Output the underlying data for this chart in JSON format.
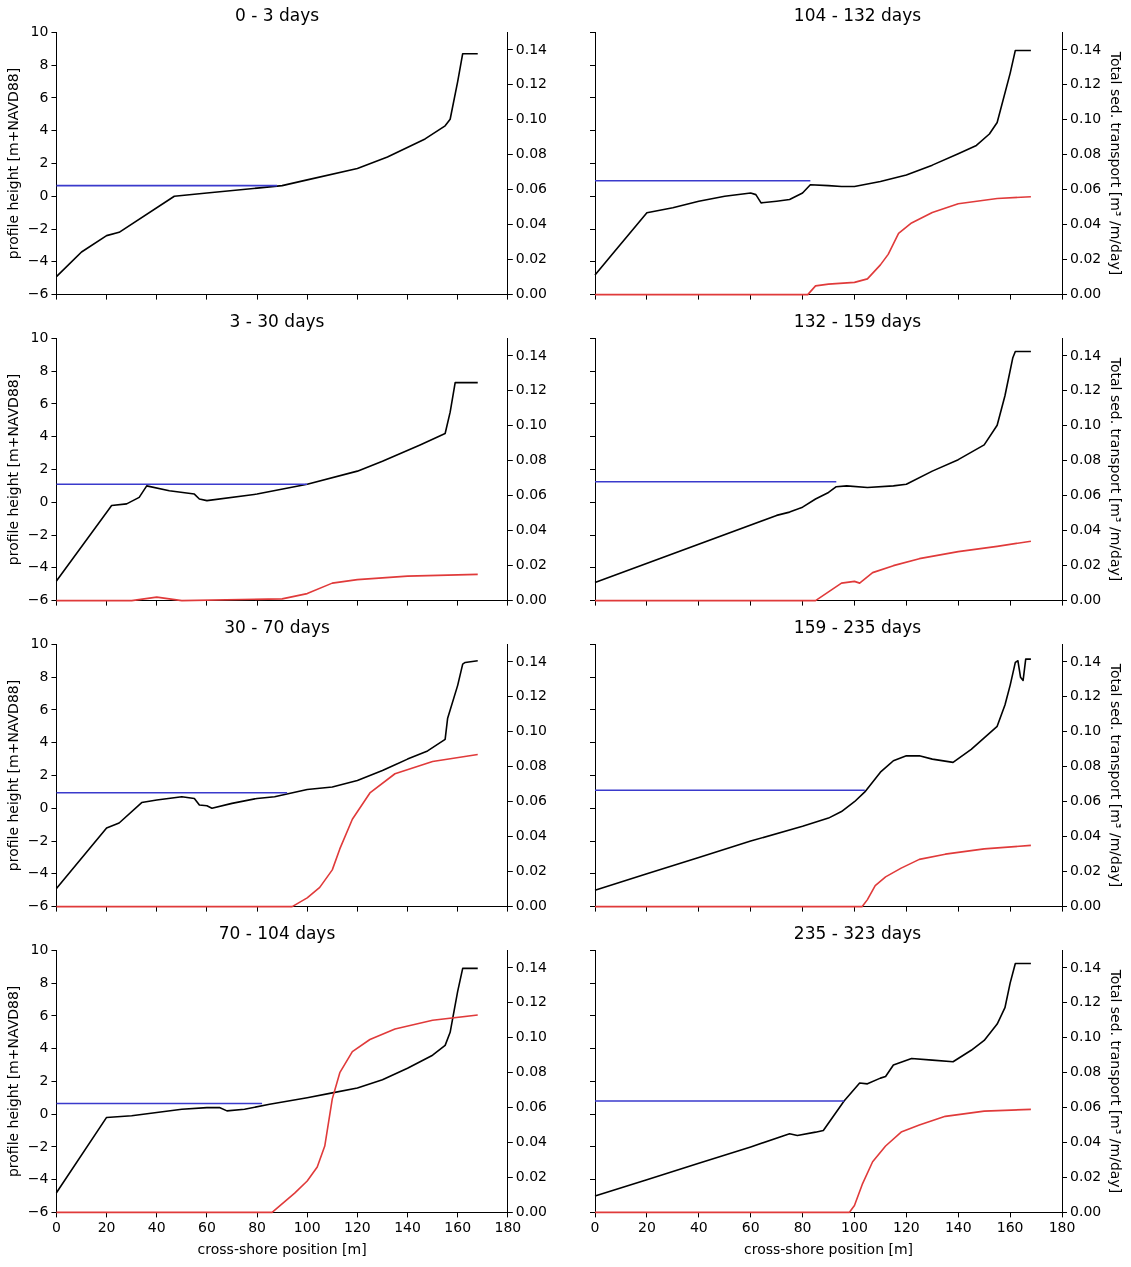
{
  "chart_data": [
    {
      "type": "line",
      "title": "0 - 3 days",
      "ylabel": "profile height [m+NAVD88]",
      "xlim": [
        0,
        180
      ],
      "xticks": [
        0,
        20,
        40,
        60,
        80,
        100,
        120,
        140,
        160,
        180
      ],
      "ylim": [
        -6,
        10
      ],
      "yticks": [
        {
          "value": -6,
          "label": "−6"
        },
        {
          "value": -4,
          "label": "−4"
        },
        {
          "value": -2,
          "label": "−2"
        },
        0,
        2,
        4,
        6,
        8,
        10
      ],
      "y2lim": [
        0,
        0.15
      ],
      "y2ticks": [
        {
          "value": 0,
          "label": "0.00"
        },
        {
          "value": 0.02,
          "label": "0.02"
        },
        {
          "value": 0.04,
          "label": "0.04"
        },
        {
          "value": 0.06,
          "label": "0.06"
        },
        {
          "value": 0.08,
          "label": "0.08"
        },
        {
          "value": 0.1,
          "label": "0.10"
        },
        {
          "value": 0.12,
          "label": "0.12"
        },
        {
          "value": 0.14,
          "label": "0.14"
        }
      ],
      "tick_labels": "y",
      "series": [
        {
          "color": "#3a3acc",
          "x": [
            0,
            88
          ],
          "values": [
            0.65,
            0.65
          ]
        },
        {
          "color": "#000000",
          "x": [
            0,
            10,
            20,
            25,
            47,
            60,
            80,
            90,
            100,
            120,
            132,
            147,
            155,
            157,
            160,
            162,
            168
          ],
          "values": [
            -4.9,
            -3.4,
            -2.4,
            -2.2,
            0,
            0.2,
            0.5,
            0.65,
            1.0,
            1.7,
            2.4,
            3.5,
            4.3,
            4.7,
            7,
            8.7,
            8.7
          ]
        }
      ]
    },
    {
      "type": "line",
      "title": "104 - 132 days",
      "y2label": "Total sed. transport [m³ /m/day]",
      "xlim": [
        0,
        180
      ],
      "xticks": [
        0,
        20,
        40,
        60,
        80,
        100,
        120,
        140,
        160,
        180
      ],
      "ylim": [
        -6,
        10
      ],
      "yticks": [
        -6,
        -4,
        -2,
        0,
        2,
        4,
        6,
        8,
        10
      ],
      "y2lim": [
        0,
        0.15
      ],
      "y2ticks": [
        {
          "value": 0,
          "label": "0.00"
        },
        {
          "value": 0.02,
          "label": "0.02"
        },
        {
          "value": 0.04,
          "label": "0.04"
        },
        {
          "value": 0.06,
          "label": "0.06"
        },
        {
          "value": 0.08,
          "label": "0.08"
        },
        {
          "value": 0.1,
          "label": "0.10"
        },
        {
          "value": 0.12,
          "label": "0.12"
        },
        {
          "value": 0.14,
          "label": "0.14"
        }
      ],
      "tick_labels": false,
      "series": [
        {
          "color": "#3a3acc",
          "x": [
            0,
            83
          ],
          "values": [
            0.95,
            0.95
          ]
        },
        {
          "color": "#e03a3a",
          "axis": "y2",
          "x": [
            0,
            82,
            85,
            90,
            100,
            105,
            110,
            113,
            117,
            122,
            130,
            140,
            155,
            168
          ],
          "values": [
            0,
            0,
            0.005,
            0.006,
            0.007,
            0.009,
            0.017,
            0.023,
            0.035,
            0.041,
            0.047,
            0.052,
            0.055,
            0.056
          ]
        },
        {
          "color": "#000000",
          "x": [
            0,
            20,
            30,
            40,
            50,
            60,
            62,
            64,
            70,
            75,
            80,
            83,
            90,
            95,
            100,
            110,
            120,
            130,
            140,
            147,
            152,
            155,
            160,
            162,
            168
          ],
          "values": [
            -4.8,
            -1.0,
            -0.7,
            -0.3,
            0,
            0.2,
            0.1,
            -0.4,
            -0.3,
            -0.2,
            0.2,
            0.7,
            0.65,
            0.6,
            0.6,
            0.9,
            1.3,
            1.9,
            2.6,
            3.1,
            3.8,
            4.5,
            7.5,
            8.9,
            8.9
          ]
        }
      ]
    },
    {
      "type": "line",
      "title": "3 - 30 days",
      "ylabel": "profile height [m+NAVD88]",
      "xlim": [
        0,
        180
      ],
      "xticks": [
        0,
        20,
        40,
        60,
        80,
        100,
        120,
        140,
        160,
        180
      ],
      "ylim": [
        -6,
        10
      ],
      "yticks": [
        {
          "value": -6,
          "label": "−6"
        },
        {
          "value": -4,
          "label": "−4"
        },
        {
          "value": -2,
          "label": "−2"
        },
        0,
        2,
        4,
        6,
        8,
        10
      ],
      "y2lim": [
        0,
        0.15
      ],
      "y2ticks": [
        {
          "value": 0,
          "label": "0.00"
        },
        {
          "value": 0.02,
          "label": "0.02"
        },
        {
          "value": 0.04,
          "label": "0.04"
        },
        {
          "value": 0.06,
          "label": "0.06"
        },
        {
          "value": 0.08,
          "label": "0.08"
        },
        {
          "value": 0.1,
          "label": "0.10"
        },
        {
          "value": 0.12,
          "label": "0.12"
        },
        {
          "value": 0.14,
          "label": "0.14"
        }
      ],
      "tick_labels": "y",
      "series": [
        {
          "color": "#3a3acc",
          "x": [
            0,
            100
          ],
          "values": [
            1.1,
            1.1
          ]
        },
        {
          "color": "#e03a3a",
          "axis": "y2",
          "x": [
            0,
            30,
            40,
            50,
            90,
            100,
            110,
            120,
            140,
            168
          ],
          "values": [
            0,
            0,
            0.002,
            0,
            0.001,
            0.004,
            0.01,
            0.012,
            0.014,
            0.015
          ]
        },
        {
          "color": "#000000",
          "x": [
            0,
            22,
            28,
            33,
            36,
            45,
            55,
            57,
            60,
            80,
            100,
            120,
            130,
            145,
            155,
            157,
            159,
            168
          ],
          "values": [
            -4.8,
            -0.2,
            -0.1,
            0.3,
            1.0,
            0.7,
            0.5,
            0.2,
            0.1,
            0.5,
            1.1,
            1.9,
            2.5,
            3.5,
            4.2,
            5.5,
            7.3,
            7.3
          ]
        }
      ]
    },
    {
      "type": "line",
      "title": "132 - 159 days",
      "y2label": "Total sed. transport [m³ /m/day]",
      "xlim": [
        0,
        180
      ],
      "xticks": [
        0,
        20,
        40,
        60,
        80,
        100,
        120,
        140,
        160,
        180
      ],
      "ylim": [
        -6,
        10
      ],
      "yticks": [
        -6,
        -4,
        -2,
        0,
        2,
        4,
        6,
        8,
        10
      ],
      "y2lim": [
        0,
        0.15
      ],
      "y2ticks": [
        {
          "value": 0,
          "label": "0.00"
        },
        {
          "value": 0.02,
          "label": "0.02"
        },
        {
          "value": 0.04,
          "label": "0.04"
        },
        {
          "value": 0.06,
          "label": "0.06"
        },
        {
          "value": 0.08,
          "label": "0.08"
        },
        {
          "value": 0.1,
          "label": "0.10"
        },
        {
          "value": 0.12,
          "label": "0.12"
        },
        {
          "value": 0.14,
          "label": "0.14"
        }
      ],
      "tick_labels": false,
      "series": [
        {
          "color": "#3a3acc",
          "x": [
            0,
            93
          ],
          "values": [
            1.25,
            1.25
          ]
        },
        {
          "color": "#e03a3a",
          "axis": "y2",
          "x": [
            0,
            85,
            90,
            95,
            100,
            102,
            107,
            115,
            125,
            140,
            155,
            168
          ],
          "values": [
            0,
            0,
            0.005,
            0.01,
            0.011,
            0.01,
            0.016,
            0.02,
            0.024,
            0.028,
            0.031,
            0.034
          ]
        },
        {
          "color": "#000000",
          "x": [
            0,
            70,
            75,
            80,
            85,
            90,
            93,
            97,
            105,
            115,
            120,
            130,
            140,
            150,
            155,
            158,
            161,
            162,
            168
          ],
          "values": [
            -4.9,
            -0.8,
            -0.6,
            -0.3,
            0.2,
            0.6,
            0.95,
            1.0,
            0.9,
            1.0,
            1.1,
            1.9,
            2.6,
            3.5,
            4.7,
            6.5,
            8.8,
            9.2,
            9.2
          ]
        }
      ]
    },
    {
      "type": "line",
      "title": "30 - 70 days",
      "ylabel": "profile height [m+NAVD88]",
      "xlim": [
        0,
        180
      ],
      "xticks": [
        0,
        20,
        40,
        60,
        80,
        100,
        120,
        140,
        160,
        180
      ],
      "ylim": [
        -6,
        10
      ],
      "yticks": [
        {
          "value": -6,
          "label": "−6"
        },
        {
          "value": -4,
          "label": "−4"
        },
        {
          "value": -2,
          "label": "−2"
        },
        0,
        2,
        4,
        6,
        8,
        10
      ],
      "y2lim": [
        0,
        0.15
      ],
      "y2ticks": [
        {
          "value": 0,
          "label": "0.00"
        },
        {
          "value": 0.02,
          "label": "0.02"
        },
        {
          "value": 0.04,
          "label": "0.04"
        },
        {
          "value": 0.06,
          "label": "0.06"
        },
        {
          "value": 0.08,
          "label": "0.08"
        },
        {
          "value": 0.1,
          "label": "0.10"
        },
        {
          "value": 0.12,
          "label": "0.12"
        },
        {
          "value": 0.14,
          "label": "0.14"
        }
      ],
      "tick_labels": "y",
      "series": [
        {
          "color": "#3a3acc",
          "x": [
            0,
            92
          ],
          "values": [
            0.95,
            0.95
          ]
        },
        {
          "color": "#e03a3a",
          "axis": "y2",
          "x": [
            0,
            94,
            100,
            105,
            110,
            113,
            118,
            125,
            135,
            150,
            168
          ],
          "values": [
            0,
            0,
            0.005,
            0.011,
            0.021,
            0.033,
            0.05,
            0.065,
            0.076,
            0.083,
            0.087
          ]
        },
        {
          "color": "#000000",
          "x": [
            0,
            20,
            25,
            34,
            40,
            50,
            55,
            57,
            60,
            62,
            70,
            80,
            87,
            100,
            110,
            120,
            130,
            140,
            148,
            155,
            156,
            160,
            162,
            163,
            168
          ],
          "values": [
            -4.9,
            -1.2,
            -0.9,
            0.35,
            0.5,
            0.7,
            0.6,
            0.2,
            0.15,
            0,
            0.3,
            0.6,
            0.7,
            1.15,
            1.3,
            1.7,
            2.3,
            3.0,
            3.5,
            4.2,
            5.5,
            7.5,
            8.8,
            8.9,
            9.0
          ]
        }
      ]
    },
    {
      "type": "line",
      "title": "159 - 235 days",
      "y2label": "Total sed. transport [m³ /m/day]",
      "xlim": [
        0,
        180
      ],
      "xticks": [
        0,
        20,
        40,
        60,
        80,
        100,
        120,
        140,
        160,
        180
      ],
      "ylim": [
        -6,
        10
      ],
      "yticks": [
        -6,
        -4,
        -2,
        0,
        2,
        4,
        6,
        8,
        10
      ],
      "y2lim": [
        0,
        0.15
      ],
      "y2ticks": [
        {
          "value": 0,
          "label": "0.00"
        },
        {
          "value": 0.02,
          "label": "0.02"
        },
        {
          "value": 0.04,
          "label": "0.04"
        },
        {
          "value": 0.06,
          "label": "0.06"
        },
        {
          "value": 0.08,
          "label": "0.08"
        },
        {
          "value": 0.1,
          "label": "0.10"
        },
        {
          "value": 0.12,
          "label": "0.12"
        },
        {
          "value": 0.14,
          "label": "0.14"
        }
      ],
      "tick_labels": false,
      "series": [
        {
          "color": "#3a3acc",
          "x": [
            0,
            104
          ],
          "values": [
            1.1,
            1.1
          ]
        },
        {
          "color": "#e03a3a",
          "axis": "y2",
          "x": [
            0,
            103,
            105,
            108,
            112,
            118,
            125,
            135,
            150,
            168
          ],
          "values": [
            0,
            0,
            0.004,
            0.012,
            0.017,
            0.022,
            0.027,
            0.03,
            0.033,
            0.035
          ]
        },
        {
          "color": "#000000",
          "x": [
            0,
            20,
            40,
            60,
            80,
            90,
            95,
            100,
            104,
            110,
            115,
            120,
            125,
            130,
            138,
            145,
            150,
            155,
            158,
            160,
            162,
            163,
            164,
            165,
            166,
            168
          ],
          "values": [
            -5.0,
            -4.0,
            -3.0,
            -2.0,
            -1.1,
            -0.6,
            -0.2,
            0.4,
            1.0,
            2.2,
            2.9,
            3.2,
            3.2,
            3.0,
            2.8,
            3.6,
            4.3,
            5.0,
            6.3,
            7.5,
            8.9,
            9.0,
            8.0,
            7.8,
            9.1,
            9.1
          ]
        }
      ]
    },
    {
      "type": "line",
      "title": "70 - 104 days",
      "xlabel": "cross-shore position [m]",
      "ylabel": "profile height [m+NAVD88]",
      "xlim": [
        0,
        180
      ],
      "xticks": [
        0,
        20,
        40,
        60,
        80,
        100,
        120,
        140,
        160,
        180
      ],
      "ylim": [
        -6,
        10
      ],
      "yticks": [
        {
          "value": -6,
          "label": "−6"
        },
        {
          "value": -4,
          "label": "−4"
        },
        {
          "value": -2,
          "label": "−2"
        },
        0,
        2,
        4,
        6,
        8,
        10
      ],
      "y2lim": [
        0,
        0.15
      ],
      "y2ticks": [
        {
          "value": 0,
          "label": "0.00"
        },
        {
          "value": 0.02,
          "label": "0.02"
        },
        {
          "value": 0.04,
          "label": "0.04"
        },
        {
          "value": 0.06,
          "label": "0.06"
        },
        {
          "value": 0.08,
          "label": "0.08"
        },
        {
          "value": 0.1,
          "label": "0.10"
        },
        {
          "value": 0.12,
          "label": "0.12"
        },
        {
          "value": 0.14,
          "label": "0.14"
        }
      ],
      "series": [
        {
          "color": "#3a3acc",
          "x": [
            0,
            82
          ],
          "values": [
            0.65,
            0.65
          ]
        },
        {
          "color": "#e03a3a",
          "axis": "y2",
          "x": [
            0,
            86,
            95,
            100,
            104,
            107,
            110,
            113,
            118,
            125,
            135,
            150,
            168
          ],
          "values": [
            0,
            0,
            0.011,
            0.018,
            0.026,
            0.038,
            0.065,
            0.08,
            0.092,
            0.099,
            0.105,
            0.11,
            0.113
          ]
        },
        {
          "color": "#000000",
          "x": [
            0,
            20,
            30,
            40,
            50,
            60,
            65,
            68,
            75,
            85,
            100,
            110,
            120,
            130,
            140,
            150,
            155,
            157,
            160,
            162,
            168
          ],
          "values": [
            -4.8,
            -0.2,
            -0.1,
            0.1,
            0.3,
            0.4,
            0.4,
            0.2,
            0.3,
            0.6,
            1.0,
            1.3,
            1.6,
            2.1,
            2.8,
            3.6,
            4.2,
            5.0,
            7.5,
            8.9,
            8.9
          ]
        }
      ]
    },
    {
      "type": "line",
      "title": "235 - 323 days",
      "xlabel": "cross-shore position [m]",
      "y2label": "Total sed. transport [m³ /m/day]",
      "xlim": [
        0,
        180
      ],
      "xticks": [
        0,
        20,
        40,
        60,
        80,
        100,
        120,
        140,
        160,
        180
      ],
      "ylim": [
        -6,
        10
      ],
      "yticks": [
        -6,
        -4,
        -2,
        0,
        2,
        4,
        6,
        8,
        10
      ],
      "y2lim": [
        0,
        0.15
      ],
      "y2ticks": [
        {
          "value": 0,
          "label": "0.00"
        },
        {
          "value": 0.02,
          "label": "0.02"
        },
        {
          "value": 0.04,
          "label": "0.04"
        },
        {
          "value": 0.06,
          "label": "0.06"
        },
        {
          "value": 0.08,
          "label": "0.08"
        },
        {
          "value": 0.1,
          "label": "0.10"
        },
        {
          "value": 0.12,
          "label": "0.12"
        },
        {
          "value": 0.14,
          "label": "0.14"
        }
      ],
      "tick_labels": "x",
      "series": [
        {
          "color": "#3a3acc",
          "x": [
            0,
            96
          ],
          "values": [
            0.8,
            0.8
          ]
        },
        {
          "color": "#e03a3a",
          "axis": "y2",
          "x": [
            0,
            98,
            100,
            103,
            107,
            112,
            118,
            125,
            135,
            150,
            168
          ],
          "values": [
            0,
            0,
            0.004,
            0.016,
            0.029,
            0.038,
            0.046,
            0.05,
            0.055,
            0.058,
            0.059
          ]
        },
        {
          "color": "#000000",
          "x": [
            0,
            20,
            40,
            60,
            75,
            78,
            85,
            88,
            96,
            102,
            105,
            110,
            112,
            115,
            122,
            130,
            138,
            145,
            150,
            155,
            158,
            160,
            162,
            168
          ],
          "values": [
            -5.0,
            -4.0,
            -3.0,
            -2.0,
            -1.2,
            -1.3,
            -1.1,
            -1.0,
            0.8,
            1.9,
            1.85,
            2.2,
            2.3,
            3.0,
            3.4,
            3.3,
            3.2,
            3.9,
            4.5,
            5.5,
            6.5,
            8.0,
            9.2,
            9.2
          ]
        }
      ]
    }
  ]
}
